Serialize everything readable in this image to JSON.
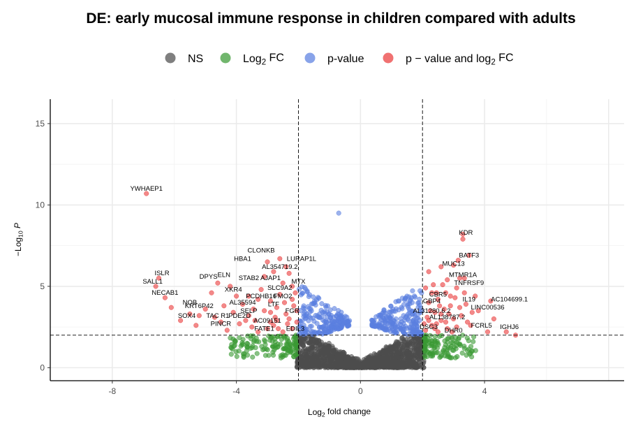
{
  "chart_data": {
    "type": "scatter",
    "title": "DE: early mucosal immune response in children compared with adults",
    "xlabel": {
      "base": "Log",
      "sub": "2",
      "rest": " fold change"
    },
    "ylabel": {
      "pre": "−Log",
      "sub": "10",
      "rest": " P"
    },
    "xlim": [
      -10,
      8.5
    ],
    "ylim": [
      -0.8,
      16.5
    ],
    "xticks": [
      -8,
      -4,
      0,
      4
    ],
    "yticks": [
      0,
      5,
      10,
      15
    ],
    "x_tick_labels": [
      "-8",
      "-4",
      "0",
      "4"
    ],
    "y_tick_labels": [
      "0",
      "5",
      "10",
      "15"
    ],
    "fc_cutoff": 2,
    "p_cutoff": 2,
    "grid": true,
    "legend_position": "top",
    "legend": [
      {
        "key": "ns",
        "parts": [
          {
            "t": "NS"
          }
        ],
        "color": "#4d4d4d"
      },
      {
        "key": "fc",
        "parts": [
          {
            "t": "Log"
          },
          {
            "t": "2",
            "sub": true
          },
          {
            "t": " FC"
          }
        ],
        "color": "#3a9a34"
      },
      {
        "key": "p",
        "parts": [
          {
            "t": "p-value"
          }
        ],
        "color": "#5a7fe0"
      },
      {
        "key": "both",
        "parts": [
          {
            "t": "p − value and log"
          },
          {
            "t": "2",
            "sub": true
          },
          {
            "t": " FC"
          }
        ],
        "color": "#ea3a3a"
      }
    ],
    "series": {
      "both": [
        [
          -6.9,
          10.7
        ],
        [
          -6.5,
          5.5
        ],
        [
          -6.6,
          5.0
        ],
        [
          -6.3,
          4.3
        ],
        [
          -6.1,
          3.7
        ],
        [
          -5.5,
          3.3
        ],
        [
          -5.8,
          2.9
        ],
        [
          -5.2,
          3.2
        ],
        [
          -5.0,
          3.6
        ],
        [
          -4.7,
          3.1
        ],
        [
          -4.5,
          2.8
        ],
        [
          -4.8,
          4.6
        ],
        [
          -4.6,
          5.2
        ],
        [
          -4.2,
          5.0
        ],
        [
          -4.0,
          4.4
        ],
        [
          -3.8,
          3.9
        ],
        [
          -3.6,
          3.2
        ],
        [
          -3.5,
          2.5
        ],
        [
          -3.4,
          2.9
        ],
        [
          -3.3,
          4.2
        ],
        [
          -3.2,
          4.8
        ],
        [
          -3.1,
          5.6
        ],
        [
          -3.0,
          6.5
        ],
        [
          -2.9,
          3.4
        ],
        [
          -2.8,
          2.6
        ],
        [
          -2.7,
          3.7
        ],
        [
          -2.6,
          4.5
        ],
        [
          -2.5,
          5.2
        ],
        [
          -2.4,
          6.2
        ],
        [
          -2.3,
          3.0
        ],
        [
          -2.2,
          2.4
        ],
        [
          -2.15,
          3.8
        ],
        [
          -2.1,
          4.6
        ],
        [
          -2.3,
          5.8
        ],
        [
          -2.5,
          2.2
        ],
        [
          -2.7,
          2.9
        ],
        [
          -2.9,
          4.1
        ],
        [
          -3.1,
          3.5
        ],
        [
          -3.3,
          2.2
        ],
        [
          -3.6,
          4.4
        ],
        [
          -3.9,
          2.7
        ],
        [
          -4.1,
          3.4
        ],
        [
          -4.4,
          3.8
        ],
        [
          -4.3,
          2.3
        ],
        [
          -5.3,
          2.6
        ],
        [
          -2.2,
          5.0
        ],
        [
          -2.4,
          3.3
        ],
        [
          -2.6,
          6.7
        ],
        [
          -2.8,
          5.9
        ],
        [
          -3.0,
          2.4
        ],
        [
          -2.05,
          2.8
        ],
        [
          -2.05,
          3.5
        ],
        [
          -2.45,
          4.0
        ],
        [
          -2.75,
          3.1
        ],
        [
          -3.45,
          3.6
        ],
        [
          -2.2,
          4.2
        ],
        [
          -2.35,
          2.7
        ],
        [
          -2.65,
          2.4
        ],
        [
          -2.9,
          2.8
        ],
        [
          -3.7,
          2.9
        ],
        [
          2.1,
          2.3
        ],
        [
          2.15,
          3.1
        ],
        [
          2.2,
          4.0
        ],
        [
          2.3,
          4.6
        ],
        [
          2.3,
          2.6
        ],
        [
          2.4,
          3.4
        ],
        [
          2.5,
          2.2
        ],
        [
          2.5,
          4.2
        ],
        [
          2.6,
          6.2
        ],
        [
          2.6,
          2.9
        ],
        [
          2.7,
          3.6
        ],
        [
          2.8,
          5.4
        ],
        [
          2.8,
          2.4
        ],
        [
          2.9,
          4.4
        ],
        [
          3.0,
          3.0
        ],
        [
          3.0,
          6.3
        ],
        [
          3.1,
          2.5
        ],
        [
          3.1,
          4.9
        ],
        [
          3.2,
          3.7
        ],
        [
          3.2,
          5.5
        ],
        [
          3.3,
          8.2
        ],
        [
          3.3,
          7.9
        ],
        [
          3.4,
          3.9
        ],
        [
          3.5,
          6.9
        ],
        [
          3.6,
          3.4
        ],
        [
          3.7,
          4.4
        ],
        [
          4.2,
          4.1
        ],
        [
          4.1,
          2.2
        ],
        [
          4.3,
          3.0
        ],
        [
          2.2,
          5.9
        ],
        [
          2.35,
          5.1
        ],
        [
          2.45,
          2.7
        ],
        [
          2.55,
          3.8
        ],
        [
          2.75,
          4.6
        ],
        [
          2.95,
          2.2
        ],
        [
          3.05,
          4.3
        ],
        [
          3.25,
          3.2
        ],
        [
          3.45,
          2.8
        ],
        [
          2.25,
          3.5
        ],
        [
          2.65,
          5.1
        ],
        [
          2.85,
          3.3
        ],
        [
          3.15,
          6.6
        ],
        [
          2.1,
          4.9
        ],
        [
          2.4,
          2.4
        ],
        [
          3.35,
          4.6
        ],
        [
          3.55,
          2.6
        ],
        [
          2.05,
          2.7
        ],
        [
          2.6,
          3.3
        ],
        [
          2.9,
          3.8
        ],
        [
          3.8,
          3.5
        ],
        [
          4.7,
          2.2
        ],
        [
          5.0,
          2.0
        ],
        [
          2.2,
          2.9
        ],
        [
          2.75,
          2.8
        ],
        [
          3.35,
          5.5
        ],
        [
          2.45,
          4.6
        ]
      ],
      "labels": [
        {
          "t": "YWHAEP1",
          "x": -6.9,
          "y": 10.7
        },
        {
          "t": "ISLR",
          "x": -6.4,
          "y": 5.5
        },
        {
          "t": "SALL1",
          "x": -6.7,
          "y": 5.0
        },
        {
          "t": "NECAB1",
          "x": -6.3,
          "y": 4.3
        },
        {
          "t": "NOB",
          "x": -5.5,
          "y": 3.7
        },
        {
          "t": "KRT6P42",
          "x": -5.2,
          "y": 3.5
        },
        {
          "t": "SOX4",
          "x": -5.6,
          "y": 2.9
        },
        {
          "t": "TAC R1",
          "x": -4.6,
          "y": 2.9
        },
        {
          "t": "PINCR",
          "x": -4.5,
          "y": 2.4
        },
        {
          "t": "DPYS",
          "x": -4.9,
          "y": 5.3
        },
        {
          "t": "ELN",
          "x": -4.4,
          "y": 5.4
        },
        {
          "t": "XKR4",
          "x": -4.1,
          "y": 4.5
        },
        {
          "t": "AL35594",
          "x": -3.8,
          "y": 3.7
        },
        {
          "t": "SELP",
          "x": -3.6,
          "y": 3.2
        },
        {
          "t": "PDE2D",
          "x": -3.9,
          "y": 2.9
        },
        {
          "t": "AC09151",
          "x": -3.0,
          "y": 2.6
        },
        {
          "t": "FATE1",
          "x": -3.1,
          "y": 2.1
        },
        {
          "t": "HBA1",
          "x": -3.8,
          "y": 6.4
        },
        {
          "t": "CLONKB",
          "x": -3.2,
          "y": 6.9
        },
        {
          "t": "STAB2",
          "x": -3.6,
          "y": 5.2
        },
        {
          "t": "AJAP1",
          "x": -2.9,
          "y": 5.2
        },
        {
          "t": "AL354719.2",
          "x": -2.6,
          "y": 5.9
        },
        {
          "t": "LURAP1L",
          "x": -1.9,
          "y": 6.4
        },
        {
          "t": "MTX",
          "x": -2.0,
          "y": 5.0
        },
        {
          "t": "SLC9A2",
          "x": -2.6,
          "y": 4.6
        },
        {
          "t": "PCDHB16",
          "x": -3.2,
          "y": 4.1
        },
        {
          "t": "FMO2",
          "x": -2.5,
          "y": 4.1
        },
        {
          "t": "LTF",
          "x": -2.8,
          "y": 3.6
        },
        {
          "t": "FGR",
          "x": -2.2,
          "y": 3.2
        },
        {
          "t": "EDIL3",
          "x": -2.1,
          "y": 2.1
        },
        {
          "t": "KDR",
          "x": 3.4,
          "y": 8.0
        },
        {
          "t": "BATF3",
          "x": 3.5,
          "y": 6.6
        },
        {
          "t": "MUC13",
          "x": 3.0,
          "y": 6.1
        },
        {
          "t": "MTMR1A",
          "x": 3.3,
          "y": 5.4
        },
        {
          "t": "TNFRSF9",
          "x": 3.5,
          "y": 4.9
        },
        {
          "t": "CBR5",
          "x": 2.5,
          "y": 4.2
        },
        {
          "t": "GBP4",
          "x": 2.3,
          "y": 3.8
        },
        {
          "t": "AL31280.6.2",
          "x": 2.3,
          "y": 3.2
        },
        {
          "t": "AL138787.2",
          "x": 2.8,
          "y": 2.8
        },
        {
          "t": "IL19",
          "x": 3.5,
          "y": 3.9
        },
        {
          "t": "AC104699.1",
          "x": 4.8,
          "y": 3.9
        },
        {
          "t": "LINC00536",
          "x": 4.1,
          "y": 3.4
        },
        {
          "t": "FCRL5",
          "x": 3.9,
          "y": 2.3
        },
        {
          "t": "DHR0",
          "x": 3.0,
          "y": 2.0
        },
        {
          "t": "IGHJ6",
          "x": 4.8,
          "y": 2.2
        },
        {
          "t": "DSG3",
          "x": 2.2,
          "y": 2.2
        }
      ]
    }
  }
}
